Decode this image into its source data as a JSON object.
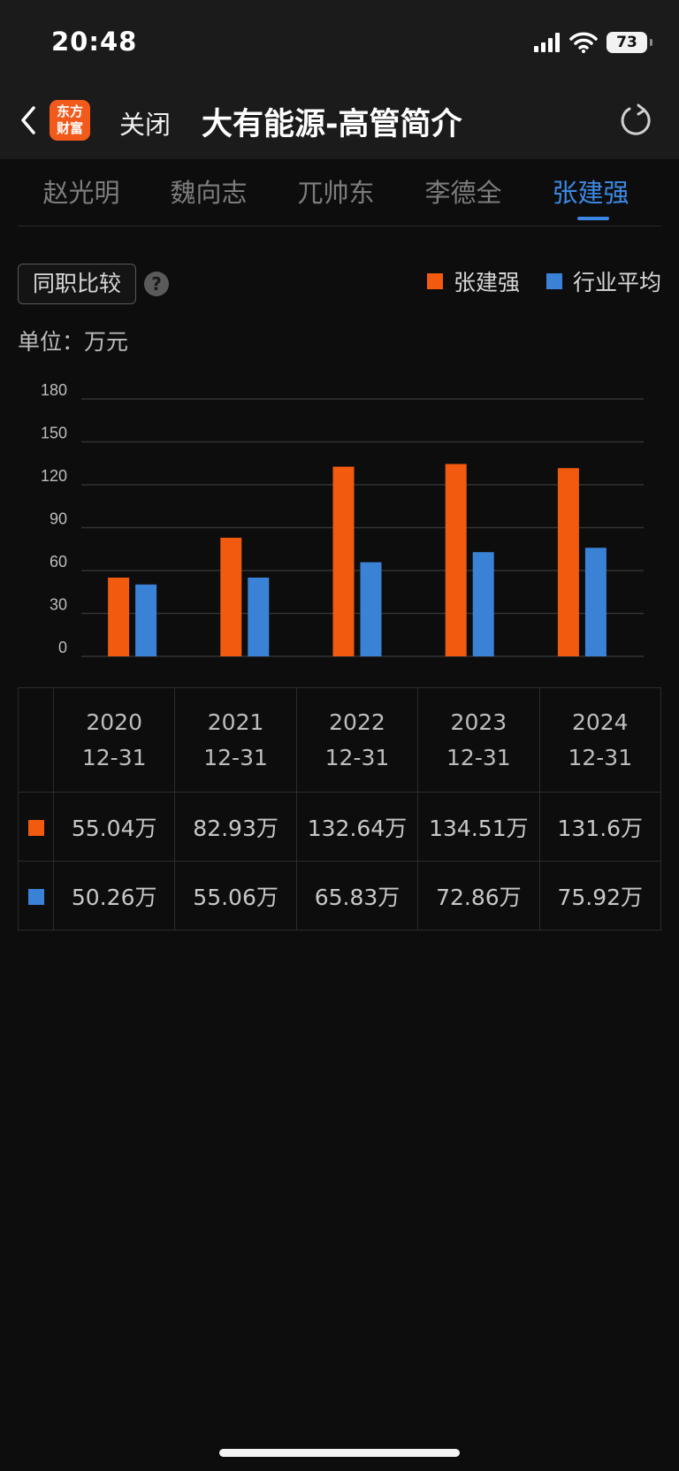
{
  "status_bar": {
    "time": "20:48",
    "battery": "73"
  },
  "nav": {
    "logo_line1": "东方",
    "logo_line2": "财富",
    "close": "关闭",
    "title": "大有能源-高管简介"
  },
  "tabs": [
    {
      "label": "赵光明",
      "active": false
    },
    {
      "label": "魏向志",
      "active": false
    },
    {
      "label": "兀帅东",
      "active": false
    },
    {
      "label": "李德全",
      "active": false
    },
    {
      "label": "张建强",
      "active": true
    }
  ],
  "compare_button": "同职比较",
  "help_icon": "?",
  "legend": [
    {
      "label": "张建强",
      "color": "#f25a0f"
    },
    {
      "label": "行业平均",
      "color": "#3a82d6"
    }
  ],
  "unit": "单位：万元",
  "chart_data": {
    "type": "bar",
    "categories": [
      "2020-12-31",
      "2021-12-31",
      "2022-12-31",
      "2023-12-31",
      "2024-12-31"
    ],
    "series": [
      {
        "name": "张建强",
        "values": [
          55.04,
          82.93,
          132.64,
          134.51,
          131.6
        ],
        "color": "#f25a0f"
      },
      {
        "name": "行业平均",
        "values": [
          50.26,
          55.06,
          65.83,
          72.86,
          75.92
        ],
        "color": "#3a82d6"
      }
    ],
    "y_ticks": [
      "180",
      "150",
      "120",
      "90",
      "60",
      "30",
      "0"
    ],
    "ylim": [
      0,
      180
    ],
    "grid": true
  },
  "table": {
    "columns": [
      {
        "year": "2020",
        "date": "12-31"
      },
      {
        "year": "2021",
        "date": "12-31"
      },
      {
        "year": "2022",
        "date": "12-31"
      },
      {
        "year": "2023",
        "date": "12-31"
      },
      {
        "year": "2024",
        "date": "12-31"
      }
    ],
    "rows": [
      {
        "color": "#f25a0f",
        "cells": [
          "55.04万",
          "82.93万",
          "132.64万",
          "134.51万",
          "131.6万"
        ]
      },
      {
        "color": "#3a82d6",
        "cells": [
          "50.26万",
          "55.06万",
          "65.83万",
          "72.86万",
          "75.92万"
        ]
      }
    ]
  }
}
